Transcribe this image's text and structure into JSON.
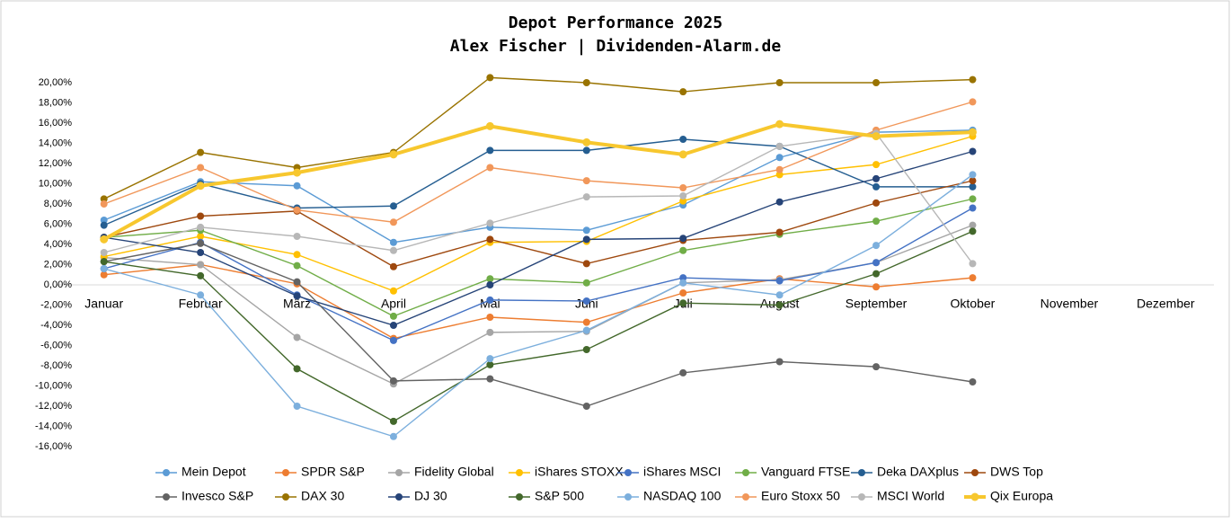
{
  "chart_data": {
    "type": "line",
    "title": "Depot Performance 2025",
    "subtitle": "Alex Fischer | Dividenden-Alarm.de",
    "categories": [
      "Januar",
      "Februar",
      "März",
      "April",
      "Mai",
      "Juni",
      "Juli",
      "August",
      "September",
      "Oktober",
      "November",
      "Dezember"
    ],
    "ylim": [
      -16,
      22
    ],
    "yticks": [
      {
        "value": -16,
        "label": "-16,00%"
      },
      {
        "value": -14,
        "label": "-14,00%"
      },
      {
        "value": -12,
        "label": "-12,00%"
      },
      {
        "value": -10,
        "label": "-10,00%"
      },
      {
        "value": -8,
        "label": "-8,00%"
      },
      {
        "value": -6,
        "label": "-6,00%"
      },
      {
        "value": -4,
        "label": "-4,00%"
      },
      {
        "value": -2,
        "label": "-2,00%"
      },
      {
        "value": 0,
        "label": "0,00%"
      },
      {
        "value": 2,
        "label": "2,00%"
      },
      {
        "value": 4,
        "label": "4,00%"
      },
      {
        "value": 6,
        "label": "6,00%"
      },
      {
        "value": 8,
        "label": "8,00%"
      },
      {
        "value": 10,
        "label": "10,00%"
      },
      {
        "value": 12,
        "label": "12,00%"
      },
      {
        "value": 14,
        "label": "14,00%"
      },
      {
        "value": 16,
        "label": "16,00%"
      },
      {
        "value": 18,
        "label": "18,00%"
      },
      {
        "value": 20,
        "label": "20,00%"
      }
    ],
    "series": [
      {
        "name": "Mein Depot",
        "color": "#5b9bd5",
        "values": [
          6.4,
          10.2,
          9.8,
          4.2,
          5.7,
          5.4,
          7.9,
          12.6,
          15.1,
          15.3,
          null,
          null
        ]
      },
      {
        "name": "SPDR S&P",
        "color": "#ed7d31",
        "values": [
          1.0,
          2.0,
          0.1,
          -5.3,
          -3.2,
          -3.7,
          -0.8,
          0.6,
          -0.2,
          0.7,
          null,
          null
        ]
      },
      {
        "name": "Fidelity Global",
        "color": "#a5a5a5",
        "values": [
          2.7,
          2.0,
          -5.2,
          -9.8,
          -4.7,
          -4.6,
          0.2,
          0.5,
          2.2,
          5.9,
          null,
          null
        ]
      },
      {
        "name": "iShares STOXX",
        "color": "#ffc000",
        "values": [
          2.8,
          4.8,
          3.0,
          -0.6,
          4.2,
          4.3,
          8.3,
          10.9,
          11.9,
          14.7,
          null,
          null
        ]
      },
      {
        "name": "iShares MSCI",
        "color": "#4472c4",
        "values": [
          1.6,
          4.2,
          -1.0,
          -5.5,
          -1.5,
          -1.6,
          0.7,
          0.4,
          2.2,
          7.6,
          null,
          null
        ]
      },
      {
        "name": "Vanguard FTSE",
        "color": "#70ad47",
        "values": [
          4.7,
          5.4,
          1.9,
          -3.1,
          0.6,
          0.2,
          3.4,
          5.0,
          6.3,
          8.5,
          null,
          null
        ]
      },
      {
        "name": "Deka DAXplus",
        "color": "#255e91",
        "values": [
          5.9,
          10.0,
          7.6,
          7.8,
          13.3,
          13.3,
          14.4,
          13.7,
          9.7,
          9.7,
          null,
          null
        ]
      },
      {
        "name": "DWS Top",
        "color": "#9e480e",
        "values": [
          4.7,
          6.8,
          7.3,
          1.8,
          4.5,
          2.1,
          4.4,
          5.2,
          8.1,
          10.3,
          null,
          null
        ]
      },
      {
        "name": "Invesco S&P",
        "color": "#636363",
        "values": [
          2.3,
          4.1,
          0.3,
          -9.5,
          -9.3,
          -12.0,
          -8.7,
          -7.6,
          -8.1,
          -9.6,
          null,
          null
        ]
      },
      {
        "name": "DAX 30",
        "color": "#997300",
        "values": [
          8.5,
          13.1,
          11.6,
          13.1,
          20.5,
          20.0,
          19.1,
          20.0,
          20.0,
          20.3,
          null,
          null
        ]
      },
      {
        "name": "DJ 30",
        "color": "#264478",
        "values": [
          4.7,
          3.2,
          -1.1,
          -4.0,
          0.0,
          4.5,
          4.6,
          8.2,
          10.5,
          13.2,
          null,
          null
        ]
      },
      {
        "name": "S&P 500",
        "color": "#43682b",
        "values": [
          2.3,
          0.9,
          -8.3,
          -13.5,
          -7.9,
          -6.4,
          -1.8,
          -2.0,
          1.1,
          5.3,
          null,
          null
        ]
      },
      {
        "name": "NASDAQ 100",
        "color": "#7cafdd",
        "values": [
          1.6,
          -1.0,
          -12.0,
          -15.0,
          -7.3,
          -4.5,
          0.2,
          -1.0,
          3.9,
          10.9,
          null,
          null
        ]
      },
      {
        "name": "Euro Stoxx 50",
        "color": "#f1975a",
        "values": [
          8.0,
          11.6,
          7.4,
          6.2,
          11.6,
          10.3,
          9.6,
          11.4,
          15.3,
          18.1,
          null,
          null
        ]
      },
      {
        "name": "MSCI World",
        "color": "#b7b7b7",
        "values": [
          3.2,
          5.7,
          4.8,
          3.4,
          6.1,
          8.7,
          8.8,
          13.7,
          15.0,
          2.1,
          null,
          null
        ]
      },
      {
        "name": "Qix Europa",
        "color": "#f7c72e",
        "values": [
          4.5,
          9.8,
          11.1,
          12.9,
          15.7,
          14.1,
          12.9,
          15.9,
          14.7,
          15.1,
          null,
          null
        ]
      }
    ]
  }
}
